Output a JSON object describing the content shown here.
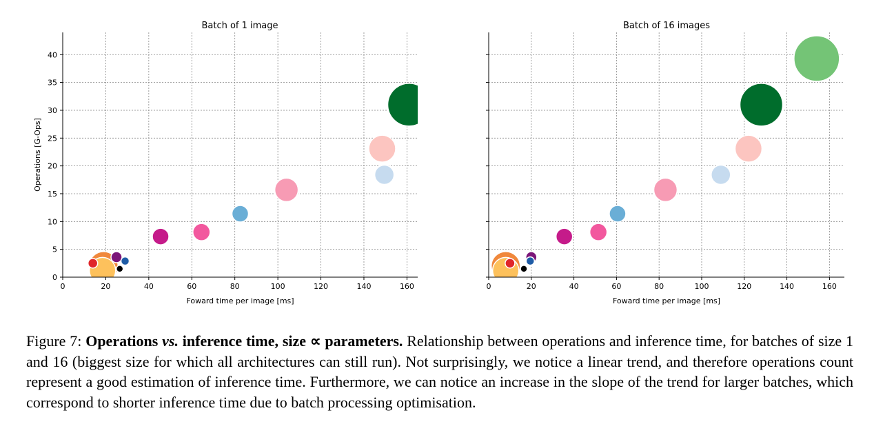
{
  "chart_data": [
    {
      "type": "scatter",
      "title": "Batch of 1 image",
      "xlabel": "Foward time per image [ms]",
      "ylabel": "Operations [G-Ops]",
      "xlim": [
        0,
        165
      ],
      "ylim": [
        0,
        44
      ],
      "xticks": [
        0,
        20,
        40,
        60,
        80,
        100,
        120,
        140,
        160
      ],
      "yticks": [
        0,
        5,
        10,
        15,
        20,
        25,
        30,
        35,
        40
      ],
      "grid": true,
      "points": [
        {
          "x": 19,
          "y": 2.0,
          "size_r": 21,
          "color": "#f0883c"
        },
        {
          "x": 18.5,
          "y": 1.2,
          "size_r": 19,
          "color": "#fdc15c"
        },
        {
          "x": 14,
          "y": 2.5,
          "size_r": 7,
          "color": "#e0262a"
        },
        {
          "x": 25,
          "y": 3.6,
          "size_r": 8,
          "color": "#7b1578"
        },
        {
          "x": 29,
          "y": 2.9,
          "size_r": 6,
          "color": "#1f5ca6"
        },
        {
          "x": 26.5,
          "y": 1.5,
          "size_r": 5,
          "color": "#000000"
        },
        {
          "x": 45.5,
          "y": 7.3,
          "size_r": 12,
          "color": "#c51b8a"
        },
        {
          "x": 64.5,
          "y": 8.1,
          "size_r": 12.5,
          "color": "#f2589e"
        },
        {
          "x": 82.5,
          "y": 11.4,
          "size_r": 12,
          "color": "#6aaed6"
        },
        {
          "x": 104,
          "y": 15.7,
          "size_r": 17,
          "color": "#f79bb4"
        },
        {
          "x": 148.5,
          "y": 23.1,
          "size_r": 19.5,
          "color": "#fcc5c0"
        },
        {
          "x": 149.5,
          "y": 18.4,
          "size_r": 14,
          "color": "#c6dbef"
        },
        {
          "x": 161,
          "y": 31.0,
          "size_r": 31,
          "color": "#006d2c"
        }
      ]
    },
    {
      "type": "scatter",
      "title": "Batch of 16 images",
      "xlabel": "Foward time per image [ms]",
      "ylabel": "",
      "xlim": [
        0,
        167
      ],
      "ylim": [
        0,
        44
      ],
      "xticks": [
        0,
        20,
        40,
        60,
        80,
        100,
        120,
        140,
        160
      ],
      "yticks": [
        0,
        5,
        10,
        15,
        20,
        25,
        30,
        35,
        40
      ],
      "grid": true,
      "points": [
        {
          "x": 8,
          "y": 2.0,
          "size_r": 21,
          "color": "#f0883c"
        },
        {
          "x": 8,
          "y": 1.2,
          "size_r": 19,
          "color": "#fdc15c"
        },
        {
          "x": 10,
          "y": 2.5,
          "size_r": 7,
          "color": "#e0262a"
        },
        {
          "x": 20,
          "y": 3.6,
          "size_r": 8,
          "color": "#7b1578"
        },
        {
          "x": 19.5,
          "y": 2.9,
          "size_r": 6,
          "color": "#1f5ca6"
        },
        {
          "x": 16.5,
          "y": 1.5,
          "size_r": 5,
          "color": "#000000"
        },
        {
          "x": 35.5,
          "y": 7.3,
          "size_r": 12,
          "color": "#c51b8a"
        },
        {
          "x": 51.5,
          "y": 8.1,
          "size_r": 12.5,
          "color": "#f2589e"
        },
        {
          "x": 60.5,
          "y": 11.4,
          "size_r": 12,
          "color": "#6aaed6"
        },
        {
          "x": 83,
          "y": 15.7,
          "size_r": 17,
          "color": "#f79bb4"
        },
        {
          "x": 122,
          "y": 23.1,
          "size_r": 19.5,
          "color": "#fcc5c0"
        },
        {
          "x": 109,
          "y": 18.4,
          "size_r": 14,
          "color": "#c6dbef"
        },
        {
          "x": 128,
          "y": 31.0,
          "size_r": 31,
          "color": "#006d2c"
        },
        {
          "x": 154,
          "y": 39.3,
          "size_r": 33,
          "color": "#74c476"
        }
      ]
    }
  ],
  "caption": {
    "prefix": "Figure 7: ",
    "bold_1": "Operations ",
    "bold_italic": "vs.",
    "bold_2": " inference time, size ∝ parameters.",
    "body": " Relationship between operations and inference time, for batches of size 1 and 16 (biggest size for which all architectures can still run). Not surprisingly, we notice a linear trend, and therefore operations count represent a good estimation of inference time. Furthermore, we can notice an increase in the slope of the trend for larger batches, which correspond to shorter inference time due to batch processing optimisation."
  }
}
